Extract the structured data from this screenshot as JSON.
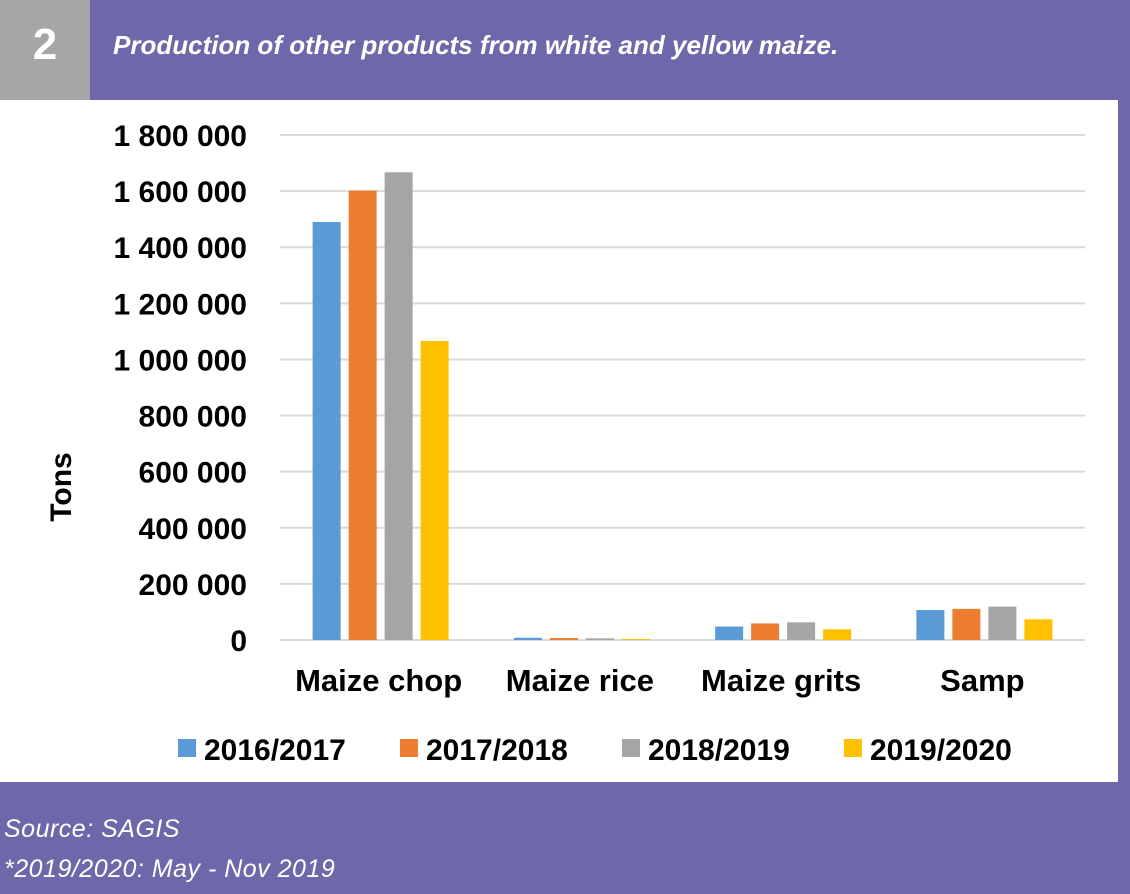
{
  "header": {
    "number": "2",
    "title": "Production of other products from white and yellow maize."
  },
  "footer": {
    "source": "Source: SAGIS",
    "note": "*2019/2020: May - Nov 2019"
  },
  "colors": {
    "background": "#6e67a9",
    "number_box": "#a6a6a8",
    "panel": "#ffffff",
    "gridline": "#d9d9d9",
    "text": "#000000"
  },
  "chart_data": {
    "type": "bar",
    "title": "",
    "xlabel": "",
    "ylabel": "Tons",
    "categories": [
      "Maize chop",
      "Maize rice",
      "Maize grits",
      "Samp"
    ],
    "ylim": [
      0,
      1800000
    ],
    "yticks": [
      0,
      200000,
      400000,
      600000,
      800000,
      1000000,
      1200000,
      1400000,
      1600000,
      1800000
    ],
    "ytick_labels": [
      "0",
      "200 000",
      "400 000",
      "600 000",
      "800 000",
      "1 000 000",
      "1 200 000",
      "1 400 000",
      "1 600 000",
      "1 800 000"
    ],
    "grid": true,
    "legend": "bottom",
    "series": [
      {
        "name": "2016/2017",
        "color": "#5b9bd5",
        "values": [
          1490000,
          8000,
          48000,
          107000
        ]
      },
      {
        "name": "2017/2018",
        "color": "#ed7d31",
        "values": [
          1602000,
          7000,
          59000,
          111000
        ]
      },
      {
        "name": "2018/2019",
        "color": "#a5a5a5",
        "values": [
          1667000,
          6000,
          63000,
          119000
        ]
      },
      {
        "name": "2019/2020",
        "color": "#ffc000",
        "values": [
          1066000,
          3000,
          38000,
          74000
        ]
      }
    ]
  }
}
